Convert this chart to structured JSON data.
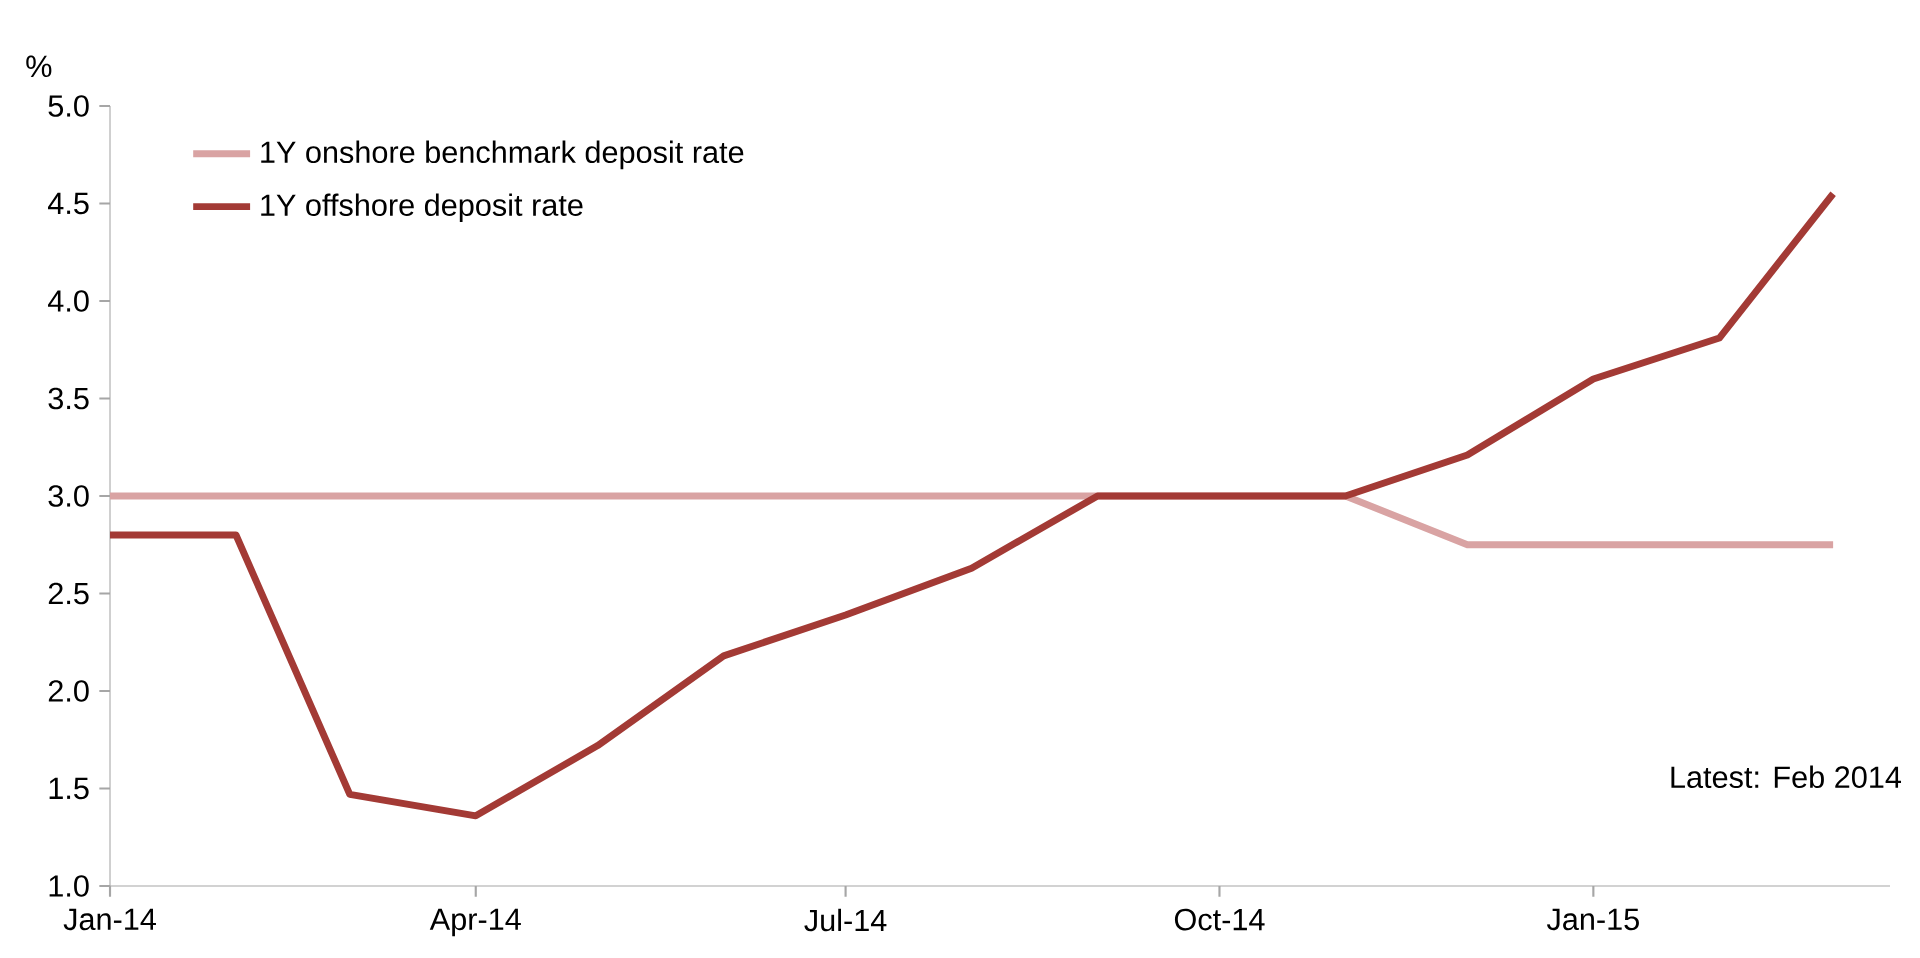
{
  "chart_data": {
    "type": "line",
    "ylabel": "%",
    "x": [
      "2014-01",
      "2014-02",
      "2014-03",
      "2014-04",
      "2014-05",
      "2014-06",
      "2014-07",
      "2014-08",
      "2014-09",
      "2014-10",
      "2014-11",
      "2014-12",
      "2015-01",
      "2015-02",
      "2015-03"
    ],
    "series": [
      {
        "name": "1Y onshore benchmark deposit rate",
        "color": "#d9a3a3",
        "values": [
          3.0,
          3.0,
          3.0,
          3.0,
          3.0,
          3.0,
          3.0,
          3.0,
          3.0,
          3.0,
          3.0,
          2.75,
          2.75,
          2.75,
          2.75
        ]
      },
      {
        "name": "1Y offshore deposit rate",
        "color": "#a33a35",
        "values": [
          2.8,
          2.8,
          1.47,
          1.36,
          1.72,
          2.18,
          2.39,
          2.63,
          3.0,
          3.0,
          3.0,
          3.21,
          3.6,
          3.81,
          4.55
        ]
      }
    ],
    "xlim": [
      "2014-01",
      "2015-03-15"
    ],
    "xticks": [
      {
        "value": "2014-01",
        "label": "Jan-14"
      },
      {
        "value": "2014-04",
        "label": "Apr-14"
      },
      {
        "value": "2014-07",
        "label": "Jul-14"
      },
      {
        "value": "2014-10",
        "label": "Oct-14"
      },
      {
        "value": "2015-01",
        "label": "Jan-15"
      }
    ],
    "ylim": [
      1.0,
      5.0
    ],
    "yticks": [
      {
        "value": 1.0,
        "label": "1.0"
      },
      {
        "value": 1.5,
        "label": "1.5"
      },
      {
        "value": 2.0,
        "label": "2.0"
      },
      {
        "value": 2.5,
        "label": "2.5"
      },
      {
        "value": 3.0,
        "label": "3.0"
      },
      {
        "value": 3.5,
        "label": "3.5"
      },
      {
        "value": 4.0,
        "label": "4.0"
      },
      {
        "value": 4.5,
        "label": "4.5"
      },
      {
        "value": 5.0,
        "label": "5.0"
      }
    ],
    "legend": "top left",
    "grid": false,
    "marker": "none",
    "line_style": "solid",
    "annotations": [
      "Latest: Feb 2014"
    ]
  }
}
